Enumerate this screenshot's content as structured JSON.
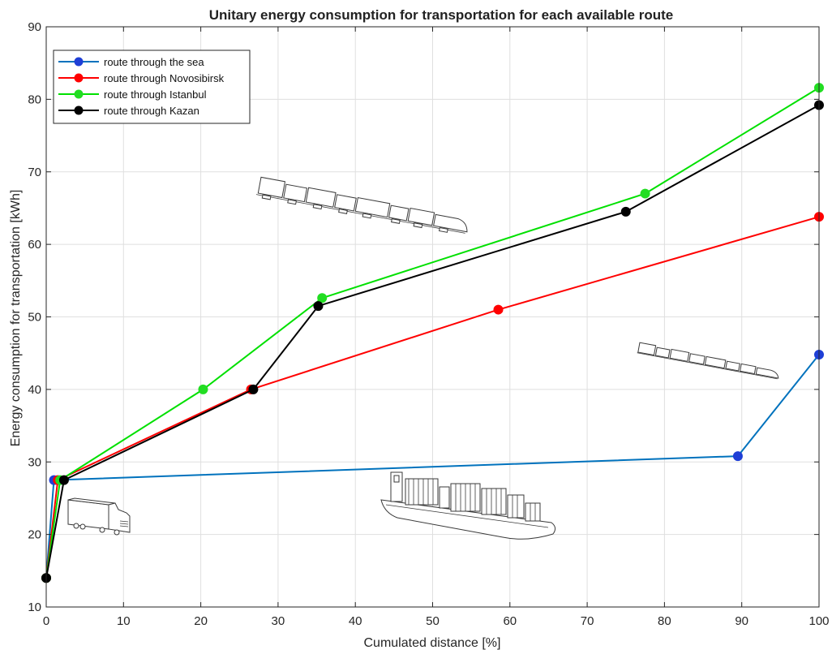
{
  "chart_data": {
    "type": "line",
    "title": "Unitary energy consumption for transportation for each available route",
    "xlabel": "Cumulated distance [%]",
    "ylabel": "Energy consumption for transportation [kWh]",
    "xlim": [
      0,
      100
    ],
    "ylim": [
      10,
      90
    ],
    "xticks": [
      0,
      10,
      20,
      30,
      40,
      50,
      60,
      70,
      80,
      90,
      100
    ],
    "yticks": [
      10,
      20,
      30,
      40,
      50,
      60,
      70,
      80,
      90
    ],
    "grid": true,
    "legend_position": "top-left",
    "series": [
      {
        "name": "route through the sea",
        "color": "#0072BD",
        "marker_color": "#1f3fd6",
        "points": [
          [
            0,
            14
          ],
          [
            1,
            27.5
          ],
          [
            89.5,
            30.8
          ],
          [
            100,
            44.8
          ]
        ]
      },
      {
        "name": "route through Novosibirsk",
        "color": "#ff0000",
        "marker_color": "#ff0000",
        "points": [
          [
            0,
            14
          ],
          [
            1.5,
            27.5
          ],
          [
            26.5,
            40
          ],
          [
            58.5,
            51
          ],
          [
            100,
            63.8
          ]
        ]
      },
      {
        "name": "route through Istanbul",
        "color": "#00e000",
        "marker_color": "#22dd22",
        "points": [
          [
            0,
            14
          ],
          [
            1.8,
            27.5
          ],
          [
            20.3,
            40
          ],
          [
            35.7,
            52.6
          ],
          [
            77.5,
            67
          ],
          [
            100,
            81.6
          ]
        ]
      },
      {
        "name": "route through Kazan",
        "color": "#000000",
        "marker_color": "#000000",
        "points": [
          [
            0,
            14
          ],
          [
            2.3,
            27.5
          ],
          [
            26.8,
            40
          ],
          [
            35.2,
            51.5
          ],
          [
            75,
            64.5
          ],
          [
            100,
            79.2
          ]
        ]
      }
    ],
    "illustrations": [
      "train-illustration-large",
      "train-illustration-small",
      "truck-illustration",
      "container-ship-illustration"
    ]
  }
}
